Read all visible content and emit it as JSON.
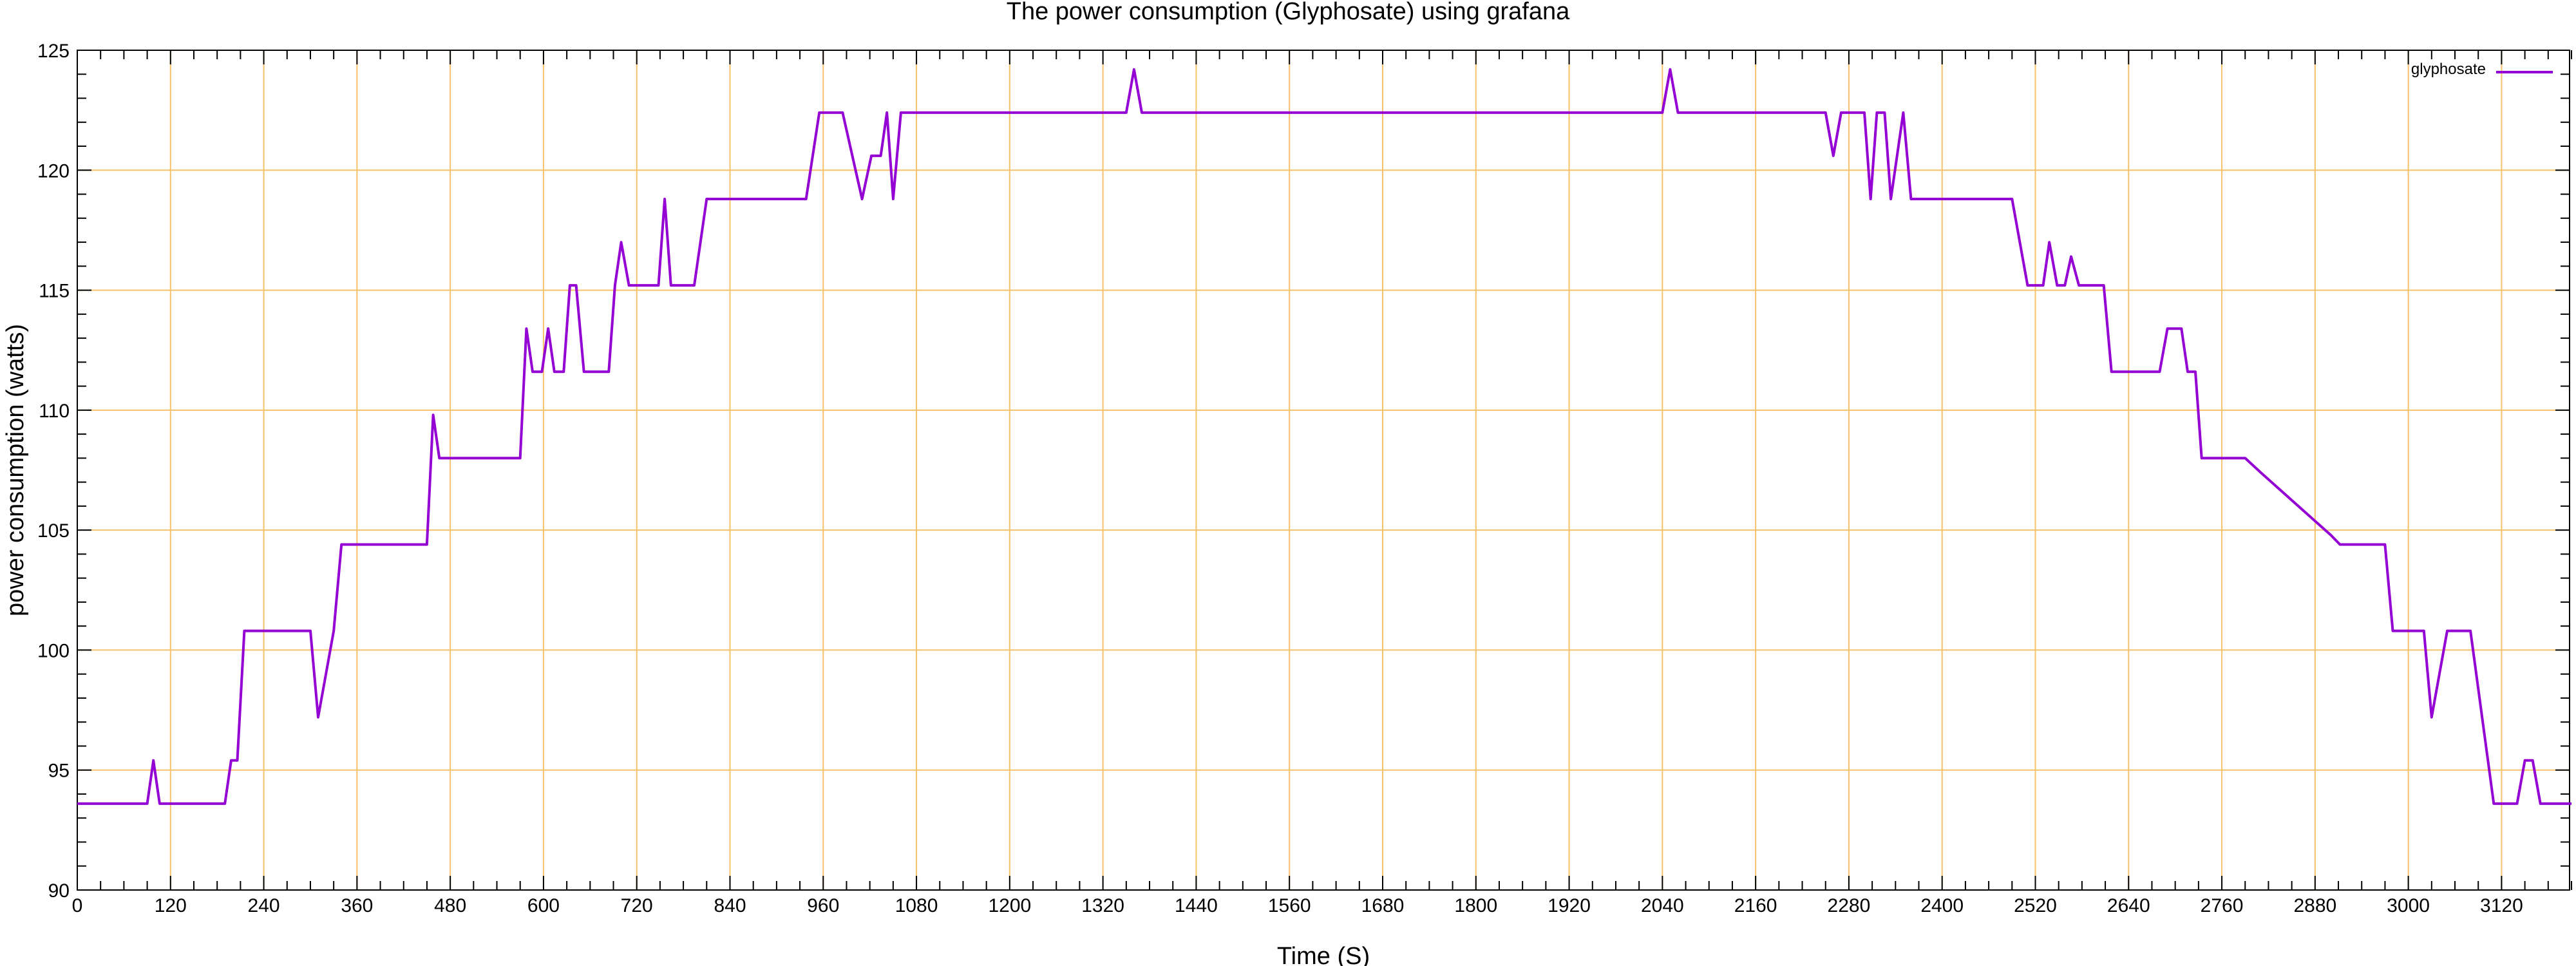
{
  "chart_data": {
    "type": "line",
    "title": "The power consumption (Glyphosate) using grafana",
    "xlabel": "Time (S)",
    "ylabel": "power consumption (watts)",
    "xlim": [
      0,
      3180
    ],
    "ylim": [
      90,
      125
    ],
    "x_ticks": [
      0,
      120,
      240,
      360,
      480,
      600,
      720,
      840,
      960,
      1080,
      1200,
      1320,
      1440,
      1560,
      1680,
      1800,
      1920,
      2040,
      2160,
      2280,
      2400,
      2520,
      2640,
      2760,
      2880,
      3000,
      3120
    ],
    "y_ticks": [
      90,
      95,
      100,
      105,
      110,
      115,
      120,
      125
    ],
    "grid": true,
    "legend_position": "top-right",
    "series": [
      {
        "name": "glyphosate",
        "color": "#9400d3",
        "points": [
          [
            0,
            93.6
          ],
          [
            90,
            93.6
          ],
          [
            98,
            95.4
          ],
          [
            106,
            93.6
          ],
          [
            190,
            93.6
          ],
          [
            198,
            95.4
          ],
          [
            206,
            95.4
          ],
          [
            215,
            100.8
          ],
          [
            300,
            100.8
          ],
          [
            310,
            97.2
          ],
          [
            330,
            100.8
          ],
          [
            340,
            104.4
          ],
          [
            450,
            104.4
          ],
          [
            458,
            109.8
          ],
          [
            466,
            108
          ],
          [
            570,
            108
          ],
          [
            578,
            113.4
          ],
          [
            586,
            111.6
          ],
          [
            598,
            111.6
          ],
          [
            606,
            113.4
          ],
          [
            614,
            111.6
          ],
          [
            626,
            111.6
          ],
          [
            634,
            115.2
          ],
          [
            642,
            115.2
          ],
          [
            652,
            111.6
          ],
          [
            684,
            111.6
          ],
          [
            692,
            115.2
          ],
          [
            700,
            117
          ],
          [
            710,
            115.2
          ],
          [
            748,
            115.2
          ],
          [
            756,
            118.8
          ],
          [
            764,
            115.2
          ],
          [
            794,
            115.2
          ],
          [
            810,
            118.8
          ],
          [
            938,
            118.8
          ],
          [
            955,
            122.4
          ],
          [
            985,
            122.4
          ],
          [
            1010,
            118.8
          ],
          [
            1022,
            120.6
          ],
          [
            1034,
            120.6
          ],
          [
            1042,
            122.4
          ],
          [
            1050,
            118.8
          ],
          [
            1060,
            122.4
          ],
          [
            1350,
            122.4
          ],
          [
            1360,
            124.2
          ],
          [
            1370,
            122.4
          ],
          [
            2040,
            122.4
          ],
          [
            2050,
            124.2
          ],
          [
            2060,
            122.4
          ],
          [
            2250,
            122.4
          ],
          [
            2260,
            120.6
          ],
          [
            2270,
            122.4
          ],
          [
            2300,
            122.4
          ],
          [
            2308,
            118.8
          ],
          [
            2316,
            122.4
          ],
          [
            2326,
            122.4
          ],
          [
            2334,
            118.8
          ],
          [
            2350,
            122.4
          ],
          [
            2360,
            118.8
          ],
          [
            2490,
            118.8
          ],
          [
            2510,
            115.2
          ],
          [
            2530,
            115.2
          ],
          [
            2538,
            117
          ],
          [
            2548,
            115.2
          ],
          [
            2558,
            115.2
          ],
          [
            2566,
            116.4
          ],
          [
            2576,
            115.2
          ],
          [
            2608,
            115.2
          ],
          [
            2618,
            111.6
          ],
          [
            2680,
            111.6
          ],
          [
            2690,
            113.4
          ],
          [
            2708,
            113.4
          ],
          [
            2716,
            111.6
          ],
          [
            2726,
            111.6
          ],
          [
            2734,
            108
          ],
          [
            2790,
            108
          ],
          [
            2810,
            107.4
          ],
          [
            2900,
            104.8
          ],
          [
            2912,
            104.4
          ],
          [
            2970,
            104.4
          ],
          [
            2980,
            100.8
          ],
          [
            3020,
            100.8
          ],
          [
            3030,
            97.2
          ],
          [
            3050,
            100.8
          ],
          [
            3080,
            100.8
          ],
          [
            3110,
            93.6
          ],
          [
            3140,
            93.6
          ],
          [
            3150,
            95.4
          ],
          [
            3160,
            95.4
          ],
          [
            3170,
            93.6
          ],
          [
            3210,
            93.6
          ]
        ]
      }
    ]
  }
}
